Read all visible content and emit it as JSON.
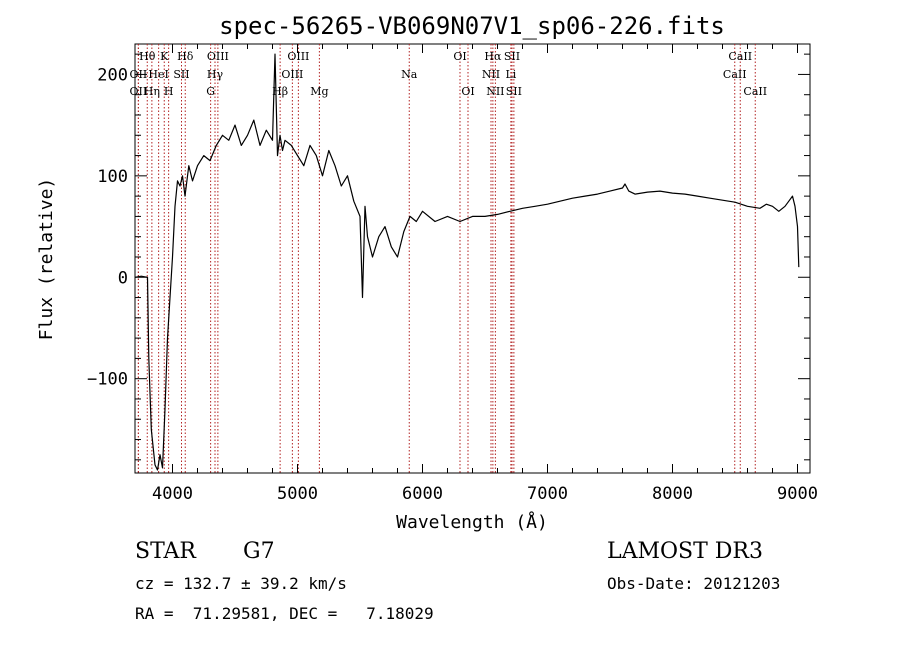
{
  "chart_data": {
    "type": "line",
    "title": "spec-56265-VB069N07V1_sp06-226.fits",
    "xlabel": "Wavelength (Å)",
    "ylabel": "Flux (relative)",
    "xlim": [
      3700,
      9100
    ],
    "ylim": [
      -193,
      230
    ],
    "xticks": [
      4000,
      5000,
      6000,
      7000,
      8000,
      9000
    ],
    "yticks": [
      -100,
      0,
      100,
      200
    ],
    "grid": false,
    "line_color": "#000000",
    "marker_color": "#b22222",
    "series": [
      {
        "values_x": [
          3700,
          3750,
          3800,
          3810,
          3830,
          3860,
          3880,
          3900,
          3920,
          3940,
          3960,
          3980,
          4000,
          4020,
          4040,
          4060,
          4080,
          4100,
          4130,
          4160,
          4200,
          4250,
          4300,
          4350,
          4400,
          4450,
          4500,
          4550,
          4600,
          4650,
          4700,
          4750,
          4800,
          4820,
          4840,
          4860,
          4880,
          4900,
          4950,
          5000,
          5050,
          5100,
          5150,
          5200,
          5250,
          5300,
          5350,
          5400,
          5450,
          5500,
          5520,
          5540,
          5560,
          5600,
          5650,
          5700,
          5750,
          5800,
          5850,
          5900,
          5950,
          6000,
          6100,
          6200,
          6300,
          6400,
          6500,
          6600,
          6700,
          6800,
          6900,
          7000,
          7100,
          7200,
          7300,
          7400,
          7500,
          7600,
          7620,
          7650,
          7700,
          7800,
          7900,
          8000,
          8100,
          8200,
          8300,
          8400,
          8500,
          8600,
          8700,
          8750,
          8800,
          8850,
          8900,
          8930,
          8960,
          8980,
          9000,
          9010
        ],
        "values_y": [
          0,
          1,
          0,
          -80,
          -150,
          -185,
          -190,
          -175,
          -188,
          -130,
          -60,
          -20,
          20,
          70,
          95,
          90,
          100,
          80,
          110,
          95,
          110,
          120,
          115,
          130,
          140,
          135,
          150,
          130,
          140,
          155,
          130,
          145,
          135,
          220,
          120,
          140,
          125,
          135,
          130,
          120,
          110,
          130,
          120,
          100,
          125,
          110,
          90,
          100,
          75,
          60,
          -20,
          70,
          40,
          20,
          40,
          50,
          30,
          20,
          45,
          60,
          55,
          65,
          55,
          60,
          55,
          60,
          60,
          62,
          65,
          68,
          70,
          72,
          75,
          78,
          80,
          82,
          85,
          88,
          92,
          85,
          82,
          84,
          85,
          83,
          82,
          80,
          78,
          76,
          74,
          70,
          68,
          72,
          70,
          65,
          70,
          75,
          80,
          70,
          50,
          10
        ]
      }
    ],
    "lines": [
      {
        "label": "Hθ",
        "x": 3798,
        "row": 0
      },
      {
        "label": "OII",
        "x": 3727,
        "row": 1
      },
      {
        "label": "OII",
        "x": 3727,
        "row": 2
      },
      {
        "label": "Hη",
        "x": 3835,
        "row": 2
      },
      {
        "label": "HeI",
        "x": 3889,
        "row": 1
      },
      {
        "label": "K",
        "x": 3934,
        "row": 0
      },
      {
        "label": "H",
        "x": 3969,
        "row": 2
      },
      {
        "label": "SII",
        "x": 4072,
        "row": 1
      },
      {
        "label": "Hδ",
        "x": 4102,
        "row": 0
      },
      {
        "label": "Hγ",
        "x": 4340,
        "row": 1
      },
      {
        "label": "G",
        "x": 4305,
        "row": 2
      },
      {
        "label": "OIII",
        "x": 4363,
        "row": 0
      },
      {
        "label": "Hβ",
        "x": 4861,
        "row": 2
      },
      {
        "label": "OIII",
        "x": 4959,
        "row": 1
      },
      {
        "label": "OIII",
        "x": 5007,
        "row": 0
      },
      {
        "label": "Mg",
        "x": 5175,
        "row": 2
      },
      {
        "label": "Na",
        "x": 5894,
        "row": 1
      },
      {
        "label": "OI",
        "x": 6300,
        "row": 0
      },
      {
        "label": "OI",
        "x": 6364,
        "row": 2
      },
      {
        "label": "NII",
        "x": 6548,
        "row": 1
      },
      {
        "label": "NII",
        "x": 6583,
        "row": 2
      },
      {
        "label": "Hα",
        "x": 6563,
        "row": 0
      },
      {
        "label": "Li",
        "x": 6707,
        "row": 1
      },
      {
        "label": "SII",
        "x": 6716,
        "row": 0
      },
      {
        "label": "SII",
        "x": 6731,
        "row": 2
      },
      {
        "label": "CaII",
        "x": 8498,
        "row": 1
      },
      {
        "label": "CaII",
        "x": 8542,
        "row": 0
      },
      {
        "label": "CaII",
        "x": 8662,
        "row": 2
      }
    ]
  },
  "info": {
    "object": "STAR",
    "subclass": "G7",
    "survey": "LAMOST DR3",
    "redshift": "cz = 132.7 ± 39.2 km/s",
    "obsdate": "Obs-Date: 20121203",
    "coords": "RA =  71.29581, DEC =   7.18029"
  }
}
